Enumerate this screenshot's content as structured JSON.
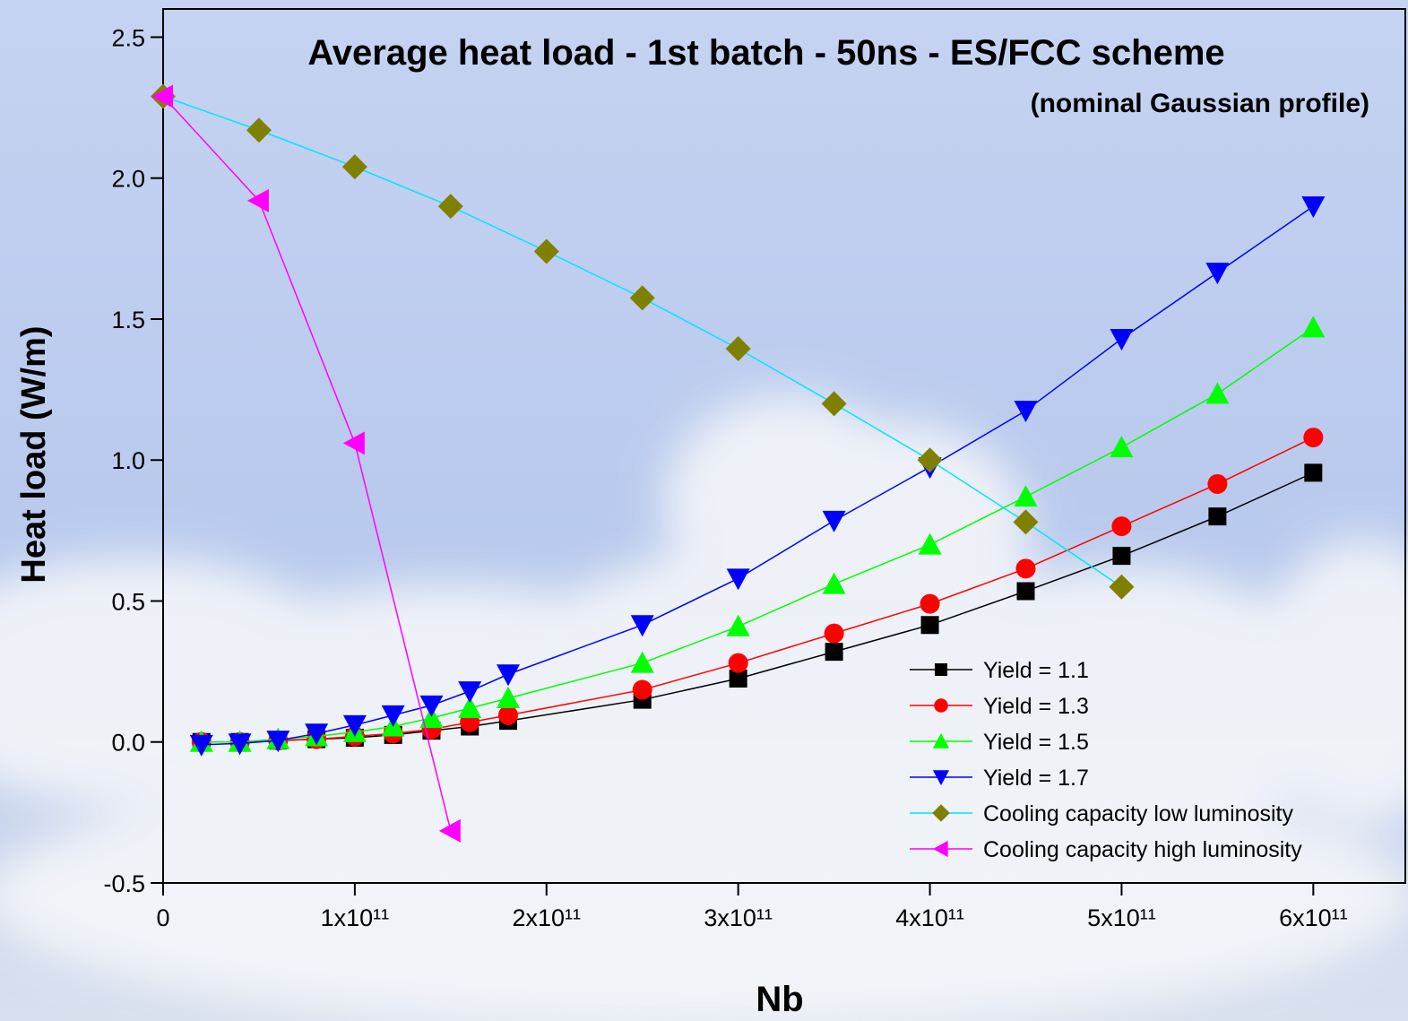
{
  "chart_data": {
    "type": "line",
    "title": "Average heat load - 1st batch - 50ns - ES/FCC scheme",
    "subtitle": "(nominal Gaussian profile)",
    "x_label": "Nb",
    "y_label": "Heat load (W/m)",
    "xlim": [
      0,
      648000000000
    ],
    "ylim": [
      -0.5,
      2.6
    ],
    "xticks": [
      0,
      {
        "value": 100000000000,
        "label": "1x10¹¹"
      },
      {
        "value": 200000000000,
        "label": "2x10¹¹"
      },
      {
        "value": 300000000000,
        "label": "3x10¹¹"
      },
      {
        "value": 400000000000,
        "label": "4x10¹¹"
      },
      {
        "value": 500000000000,
        "label": "5x10¹¹"
      },
      {
        "value": 600000000000,
        "label": "6x10¹¹"
      }
    ],
    "yticks": [
      -0.5,
      {
        "value": 0,
        "label": "0.0"
      },
      0.5,
      {
        "value": 1,
        "label": "1.0"
      },
      1.5,
      {
        "value": 2,
        "label": "2.0"
      },
      2.5
    ],
    "legend": "lower right",
    "series": [
      {
        "name": "Yield = 1.1",
        "color": "#000000",
        "marker": "square",
        "x": [
          20000000000,
          40000000000,
          60000000000,
          80000000000,
          100000000000,
          120000000000,
          140000000000,
          160000000000,
          180000000000,
          250000000000,
          300000000000,
          350000000000,
          400000000000,
          450000000000,
          500000000000,
          550000000000,
          600000000000
        ],
        "values": [
          0,
          0,
          0.005,
          0.01,
          0.015,
          0.025,
          0.04,
          0.055,
          0.075,
          0.15,
          0.225,
          0.32,
          0.415,
          0.535,
          0.66,
          0.8,
          0.955
        ]
      },
      {
        "name": "Yield = 1.3",
        "color": "#ff0000",
        "marker": "circle",
        "x": [
          20000000000,
          40000000000,
          60000000000,
          80000000000,
          100000000000,
          120000000000,
          140000000000,
          160000000000,
          180000000000,
          250000000000,
          300000000000,
          350000000000,
          400000000000,
          450000000000,
          500000000000,
          550000000000,
          600000000000
        ],
        "values": [
          0,
          0,
          0.005,
          0.01,
          0.02,
          0.03,
          0.045,
          0.07,
          0.095,
          0.185,
          0.28,
          0.385,
          0.49,
          0.615,
          0.765,
          0.915,
          1.08
        ]
      },
      {
        "name": "Yield = 1.5",
        "color": "#00ff00",
        "marker": "triangle-up",
        "x": [
          20000000000,
          40000000000,
          60000000000,
          80000000000,
          100000000000,
          120000000000,
          140000000000,
          160000000000,
          180000000000,
          250000000000,
          300000000000,
          350000000000,
          400000000000,
          450000000000,
          500000000000,
          550000000000,
          600000000000
        ],
        "values": [
          0,
          0,
          0.01,
          0.02,
          0.035,
          0.055,
          0.085,
          0.12,
          0.155,
          0.28,
          0.41,
          0.56,
          0.7,
          0.87,
          1.045,
          1.235,
          1.47
        ]
      },
      {
        "name": "Yield = 1.7",
        "color": "#0000ff",
        "marker": "triangle-down",
        "x": [
          20000000000,
          40000000000,
          60000000000,
          80000000000,
          100000000000,
          120000000000,
          140000000000,
          160000000000,
          180000000000,
          250000000000,
          300000000000,
          350000000000,
          400000000000,
          450000000000,
          500000000000,
          550000000000,
          600000000000
        ],
        "values": [
          -0.01,
          -0.005,
          0.005,
          0.03,
          0.06,
          0.095,
          0.13,
          0.18,
          0.24,
          0.415,
          0.58,
          0.785,
          0.975,
          1.175,
          1.43,
          1.665,
          1.9
        ]
      },
      {
        "name": "Cooling capacity low luminosity",
        "color": "#808000",
        "line_color": "#00e5ff",
        "marker": "diamond",
        "x": [
          0,
          50000000000,
          100000000000,
          150000000000,
          200000000000,
          250000000000,
          300000000000,
          350000000000,
          400000000000,
          450000000000,
          500000000000
        ],
        "values": [
          2.29,
          2.17,
          2.04,
          1.9,
          1.74,
          1.575,
          1.395,
          1.2,
          1.0,
          0.78,
          0.55
        ]
      },
      {
        "name": "Cooling capacity high luminosity",
        "color": "#ff00ff",
        "marker": "triangle-left",
        "x": [
          0,
          50000000000,
          100000000000,
          150000000000
        ],
        "values": [
          2.29,
          1.92,
          1.06,
          -0.315
        ]
      }
    ]
  }
}
